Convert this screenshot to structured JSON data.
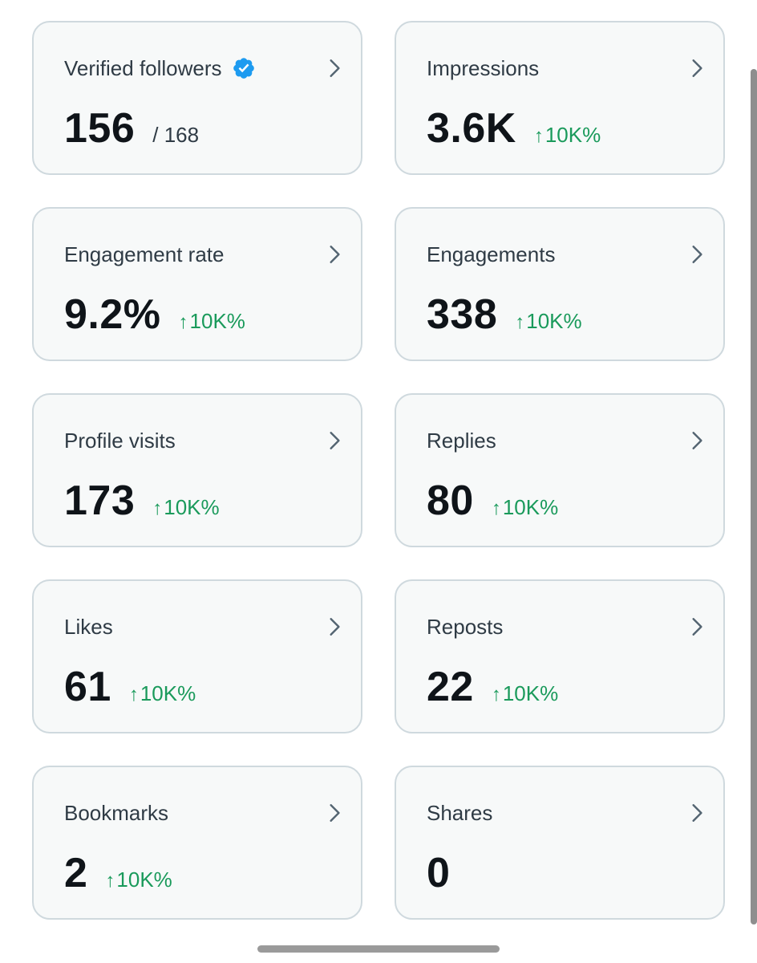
{
  "cards": [
    {
      "title": "Verified followers",
      "value": "156",
      "suffix": "/ 168",
      "delta": "",
      "verified": true
    },
    {
      "title": "Impressions",
      "value": "3.6K",
      "suffix": "",
      "delta": "10K%"
    },
    {
      "title": "Engagement rate",
      "value": "9.2%",
      "suffix": "",
      "delta": "10K%"
    },
    {
      "title": "Engagements",
      "value": "338",
      "suffix": "",
      "delta": "10K%"
    },
    {
      "title": "Profile visits",
      "value": "173",
      "suffix": "",
      "delta": "10K%"
    },
    {
      "title": "Replies",
      "value": "80",
      "suffix": "",
      "delta": "10K%"
    },
    {
      "title": "Likes",
      "value": "61",
      "suffix": "",
      "delta": "10K%"
    },
    {
      "title": "Reposts",
      "value": "22",
      "suffix": "",
      "delta": "10K%"
    },
    {
      "title": "Bookmarks",
      "value": "2",
      "suffix": "",
      "delta": "10K%"
    },
    {
      "title": "Shares",
      "value": "0",
      "suffix": "",
      "delta": ""
    }
  ],
  "arrow_glyph": "↑",
  "colors": {
    "delta_green": "#1a9a5b",
    "verified_blue": "#1d9bf0",
    "card_border": "#cfd9de",
    "card_bg": "#f7f9f9"
  },
  "icons": {
    "chevron": "chevron-right-icon",
    "verified": "verified-badge-icon",
    "arrow": "arrow-up-icon"
  }
}
